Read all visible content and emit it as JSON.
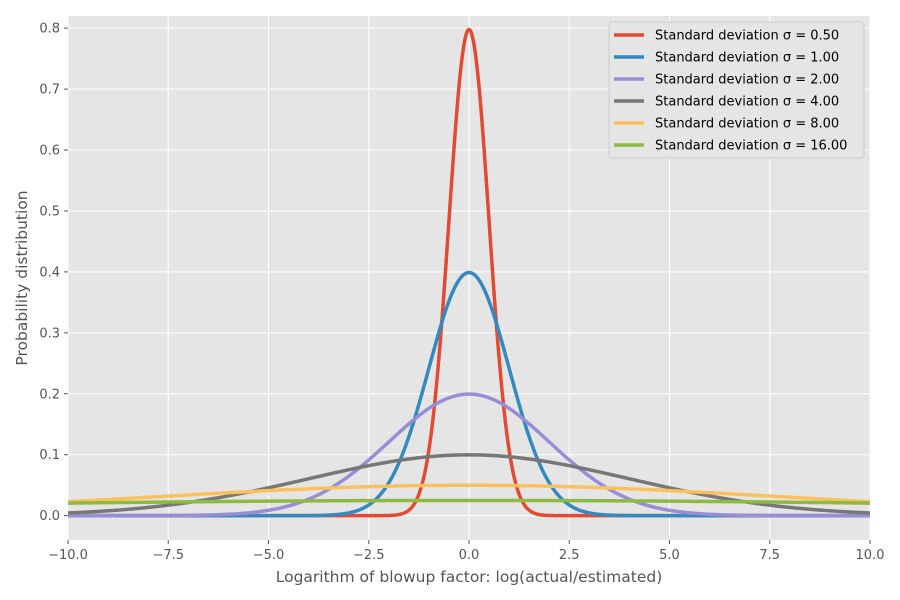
{
  "chart_data": {
    "type": "line",
    "title": "",
    "xlabel": "Logarithm of blowup factor: log(actual/estimated)",
    "ylabel": "Probability distribution",
    "xlim": [
      -10,
      10
    ],
    "ylim": [
      -0.04,
      0.82
    ],
    "xticks": [
      -10,
      -7.5,
      -5,
      -2.5,
      0,
      2.5,
      5,
      7.5,
      10
    ],
    "xtick_labels": [
      "−10.0",
      "−7.5",
      "−5.0",
      "−2.5",
      "0.0",
      "2.5",
      "5.0",
      "7.5",
      "10.0"
    ],
    "yticks": [
      0,
      0.1,
      0.2,
      0.3,
      0.4,
      0.5,
      0.6,
      0.7,
      0.8
    ],
    "ytick_labels": [
      "0.0",
      "0.1",
      "0.2",
      "0.3",
      "0.4",
      "0.5",
      "0.6",
      "0.7",
      "0.8"
    ],
    "grid": true,
    "legend_position": "top-right",
    "plot_background": "#E5E5E5",
    "series": [
      {
        "name": "Standard deviation σ = 0.50",
        "sigma": 0.5,
        "color": "#E24A33",
        "x": [
          -10,
          -9,
          -8,
          -7,
          -6,
          -5,
          -4,
          -3,
          -2.5,
          -2,
          -1.75,
          -1.5,
          -1.25,
          -1,
          -0.75,
          -0.5,
          -0.25,
          0,
          0.25,
          0.5,
          0.75,
          1,
          1.25,
          1.5,
          1.75,
          2,
          2.5,
          3,
          4,
          5,
          6,
          7,
          8,
          9,
          10
        ],
        "y": [
          0,
          0,
          0,
          0,
          0,
          0,
          0,
          0,
          0,
          0.0001,
          0.0017,
          0.0089,
          0.035,
          0.108,
          0.259,
          0.484,
          0.704,
          0.798,
          0.704,
          0.484,
          0.259,
          0.108,
          0.035,
          0.0089,
          0.0017,
          0.0001,
          0,
          0,
          0,
          0,
          0,
          0,
          0,
          0,
          0
        ]
      },
      {
        "name": "Standard deviation σ = 1.00",
        "sigma": 1.0,
        "color": "#348ABD",
        "x": [
          -10,
          -9,
          -8,
          -7,
          -6,
          -5,
          -4,
          -3.5,
          -3,
          -2.5,
          -2,
          -1.5,
          -1.25,
          -1,
          -0.75,
          -0.5,
          -0.25,
          0,
          0.25,
          0.5,
          0.75,
          1,
          1.25,
          1.5,
          2,
          2.5,
          3,
          3.5,
          4,
          5,
          6,
          7,
          8,
          9,
          10
        ],
        "y": [
          0,
          0,
          0,
          0,
          0,
          0,
          0.0001,
          0.0009,
          0.0044,
          0.0175,
          0.054,
          0.1295,
          0.1826,
          0.242,
          0.3011,
          0.3521,
          0.3867,
          0.3989,
          0.3867,
          0.3521,
          0.3011,
          0.242,
          0.1826,
          0.1295,
          0.054,
          0.0175,
          0.0044,
          0.0009,
          0.0001,
          0,
          0,
          0,
          0,
          0,
          0
        ]
      },
      {
        "name": "Standard deviation σ = 2.00",
        "sigma": 2.0,
        "color": "#988ED5",
        "x": [
          -10,
          -9,
          -8,
          -7,
          -6,
          -5,
          -4,
          -3,
          -2.5,
          -2,
          -1.5,
          -1,
          -0.5,
          0,
          0.5,
          1,
          1.5,
          2,
          2.5,
          3,
          4,
          5,
          6,
          7,
          8,
          9,
          10
        ],
        "y": [
          0,
          0,
          0.0001,
          0.0004,
          0.0022,
          0.0088,
          0.027,
          0.0648,
          0.0913,
          0.121,
          0.1506,
          0.176,
          0.1933,
          0.1995,
          0.1933,
          0.176,
          0.1506,
          0.121,
          0.0913,
          0.0648,
          0.027,
          0.0088,
          0.0022,
          0.0004,
          0.0001,
          0,
          0
        ]
      },
      {
        "name": "Standard deviation σ = 4.00",
        "sigma": 4.0,
        "color": "#777777",
        "x": [
          -10,
          -9,
          -8,
          -7,
          -6,
          -5,
          -4,
          -3,
          -2,
          -1,
          0,
          1,
          2,
          3,
          4,
          5,
          6,
          7,
          8,
          9,
          10
        ],
        "y": [
          0.0044,
          0.0079,
          0.0135,
          0.0215,
          0.0324,
          0.0457,
          0.0605,
          0.0753,
          0.088,
          0.0967,
          0.0997,
          0.0967,
          0.088,
          0.0753,
          0.0605,
          0.0457,
          0.0324,
          0.0215,
          0.0135,
          0.0079,
          0.0044
        ]
      },
      {
        "name": "Standard deviation σ = 8.00",
        "sigma": 8.0,
        "color": "#FBC15E",
        "x": [
          -10,
          -8,
          -6,
          -4,
          -2,
          0,
          2,
          4,
          6,
          8,
          10
        ],
        "y": [
          0.0228,
          0.0302,
          0.0376,
          0.044,
          0.0483,
          0.0499,
          0.0483,
          0.044,
          0.0376,
          0.0302,
          0.0228
        ]
      },
      {
        "name": "Standard deviation σ = 16.00",
        "sigma": 16.0,
        "color": "#8EBA42",
        "x": [
          -10,
          -5,
          0,
          5,
          10
        ],
        "y": [
          0.0205,
          0.0237,
          0.0249,
          0.0237,
          0.0205
        ]
      }
    ]
  }
}
